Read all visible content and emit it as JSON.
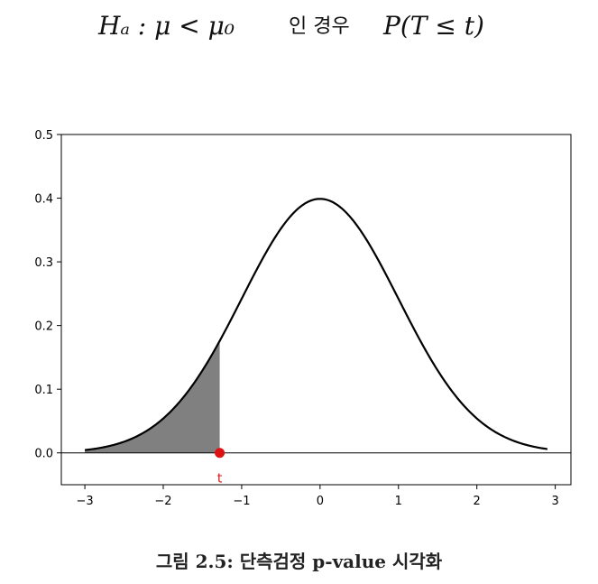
{
  "chart_data": {
    "type": "area",
    "title": {
      "hypothesis": "Hₐ : μ < μ₀",
      "case_text": "인 경우",
      "probability": "P(T ≤ t)"
    },
    "xlabel": "",
    "ylabel": "",
    "xlim": [
      -3.3,
      3.2
    ],
    "ylim": [
      -0.05,
      0.5
    ],
    "xticks": [
      -3,
      -2,
      -1,
      0,
      1,
      2,
      3
    ],
    "xtick_labels": [
      "−3",
      "−2",
      "−1",
      "0",
      "1",
      "2",
      "3"
    ],
    "yticks": [
      0.0,
      0.1,
      0.2,
      0.3,
      0.4,
      0.5
    ],
    "ytick_labels": [
      "0.0",
      "0.1",
      "0.2",
      "0.3",
      "0.4",
      "0.5"
    ],
    "grid": false,
    "series": [
      {
        "curve": "standard normal density",
        "x_range": [
          -3,
          2.9
        ],
        "color": "#000000",
        "values": [
          {
            "x": -3.0,
            "y": 0.0044
          },
          {
            "x": -2.5,
            "y": 0.0175
          },
          {
            "x": -2.0,
            "y": 0.054
          },
          {
            "x": -1.5,
            "y": 0.1295
          },
          {
            "x": -1.28,
            "y": 0.1758
          },
          {
            "x": -1.0,
            "y": 0.242
          },
          {
            "x": -0.5,
            "y": 0.3521
          },
          {
            "x": 0.0,
            "y": 0.3989
          },
          {
            "x": 0.5,
            "y": 0.3521
          },
          {
            "x": 1.0,
            "y": 0.242
          },
          {
            "x": 1.5,
            "y": 0.1295
          },
          {
            "x": 2.0,
            "y": 0.054
          },
          {
            "x": 2.5,
            "y": 0.0175
          },
          {
            "x": 2.9,
            "y": 0.006
          }
        ]
      }
    ],
    "shaded_region": {
      "x_from": -3.0,
      "x_to": -1.28,
      "color": "#808080"
    },
    "marker": {
      "x": -1.28,
      "y": 0.0,
      "label": "t",
      "color": "#dd1111"
    },
    "baseline_y": 0.0
  },
  "caption": "그림 2.5: 단측검정 p-value 시각화"
}
